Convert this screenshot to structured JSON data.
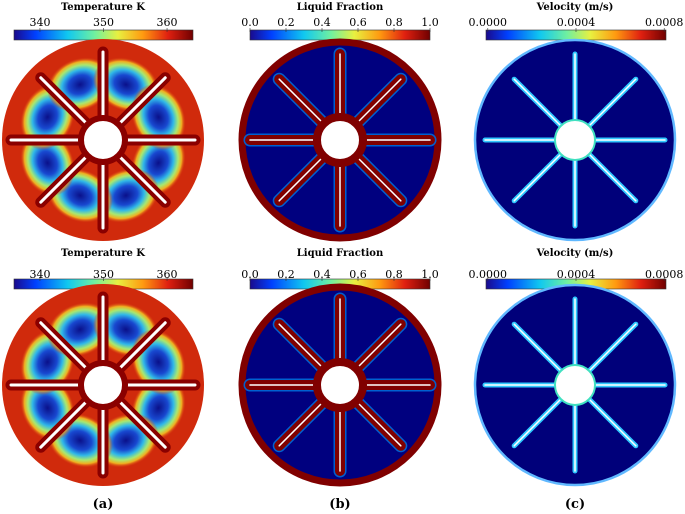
{
  "rows": [
    {
      "panels": [
        {
          "title": "Temperature K",
          "ticks": [
            "340",
            "350",
            "360"
          ]
        },
        {
          "title": "Liquid Fraction",
          "ticks": [
            "0.0",
            "0.2",
            "0.4",
            "0.6",
            "0.8",
            "1.0"
          ]
        },
        {
          "title": "Velocity (m/s)",
          "ticks": [
            "0.0000",
            "0.0004",
            "0.0008"
          ]
        }
      ]
    },
    {
      "panels": [
        {
          "title": "Temperature K",
          "ticks": [
            "340",
            "350",
            "360"
          ]
        },
        {
          "title": "Liquid Fraction",
          "ticks": [
            "0.0",
            "0.2",
            "0.4",
            "0.6",
            "0.8",
            "1.0"
          ]
        },
        {
          "title": "Velocity (m/s)",
          "ticks": [
            "0.0000",
            "0.0004",
            "0.0008"
          ]
        }
      ]
    }
  ],
  "labels": [
    "(a)",
    "(b)",
    "(c)"
  ]
}
